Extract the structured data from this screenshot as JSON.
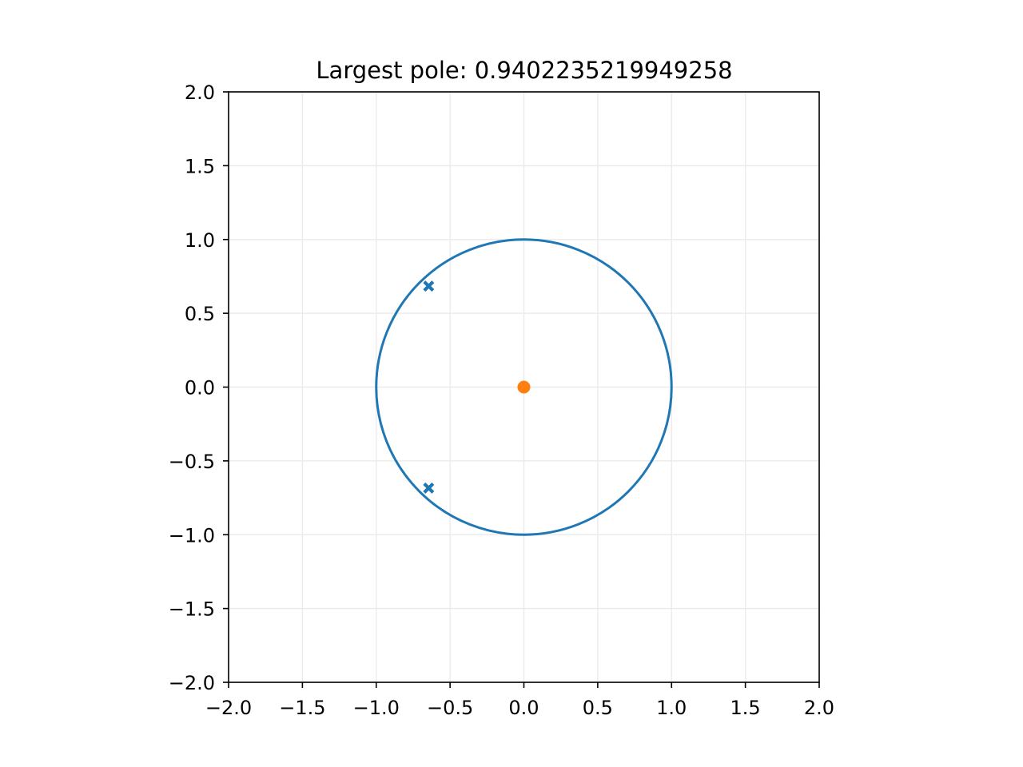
{
  "chart_data": {
    "type": "scatter",
    "title": "Largest pole: 0.9402235219949258",
    "xlabel": "",
    "ylabel": "",
    "xlim": [
      -2.0,
      2.0
    ],
    "ylim": [
      -2.0,
      2.0
    ],
    "grid": true,
    "x_ticks": [
      -2.0,
      -1.5,
      -1.0,
      -0.5,
      0.0,
      0.5,
      1.0,
      1.5,
      2.0
    ],
    "y_ticks": [
      -2.0,
      -1.5,
      -1.0,
      -0.5,
      0.0,
      0.5,
      1.0,
      1.5,
      2.0
    ],
    "x_tick_labels": [
      "−2.0",
      "−1.5",
      "−1.0",
      "−0.5",
      "0.0",
      "0.5",
      "1.0",
      "1.5",
      "2.0"
    ],
    "y_tick_labels": [
      "−2.0",
      "−1.5",
      "−1.0",
      "−0.5",
      "0.0",
      "0.5",
      "1.0",
      "1.5",
      "2.0"
    ],
    "unit_circle": {
      "center": [
        0.0,
        0.0
      ],
      "radius": 1.0,
      "color": "#1f77b4"
    },
    "poles": {
      "marker": "x",
      "color": "#1f77b4",
      "points": [
        {
          "x": -0.645,
          "y": 0.684
        },
        {
          "x": -0.645,
          "y": -0.684
        }
      ]
    },
    "zeros": {
      "marker": "o",
      "color": "#ff7f0e",
      "points": [
        {
          "x": 0.0,
          "y": 0.0
        }
      ]
    }
  }
}
